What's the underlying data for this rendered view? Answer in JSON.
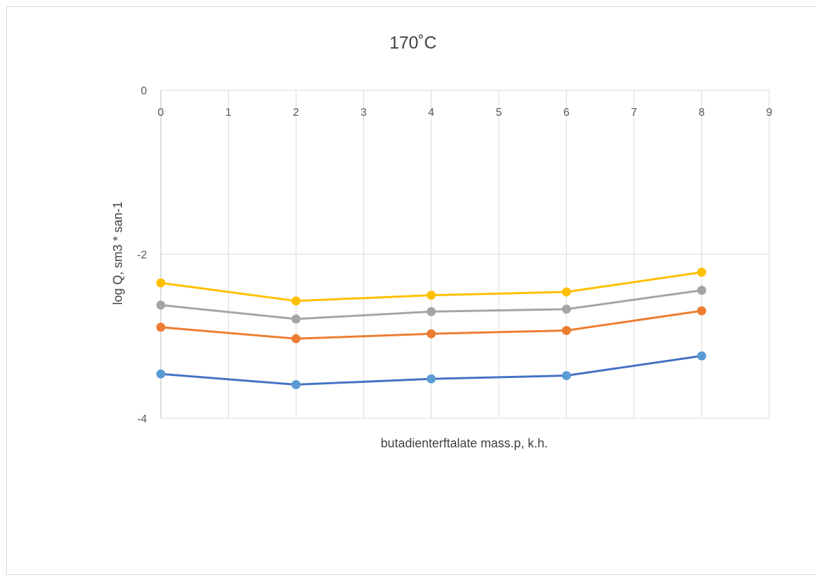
{
  "chart_data": {
    "type": "line",
    "title": "170˚C",
    "xlabel": "butadienterftalate mass.p, k.h.",
    "ylabel": "log Q, sm3 * san-1",
    "xlim": [
      0,
      9
    ],
    "ylim": [
      -4,
      0
    ],
    "x_ticks": [
      0,
      1,
      2,
      3,
      4,
      5,
      6,
      7,
      8,
      9
    ],
    "y_ticks": [
      0,
      -2,
      -4
    ],
    "x": [
      0,
      2,
      4,
      6,
      8
    ],
    "grid": true,
    "legend": "none",
    "series": [
      {
        "color": "#4472c4",
        "marker_color": "#5b9bd5",
        "values": [
          -3.46,
          -3.59,
          -3.52,
          -3.48,
          -3.24
        ]
      },
      {
        "color": "#ed7d31",
        "marker_color": "#ed7d31",
        "values": [
          -2.89,
          -3.03,
          -2.97,
          -2.93,
          -2.69
        ]
      },
      {
        "color": "#a5a5a5",
        "marker_color": "#a5a5a5",
        "values": [
          -2.62,
          -2.79,
          -2.7,
          -2.67,
          -2.44
        ]
      },
      {
        "color": "#ffc000",
        "marker_color": "#ffc000",
        "values": [
          -2.35,
          -2.57,
          -2.5,
          -2.46,
          -2.22
        ]
      }
    ]
  }
}
